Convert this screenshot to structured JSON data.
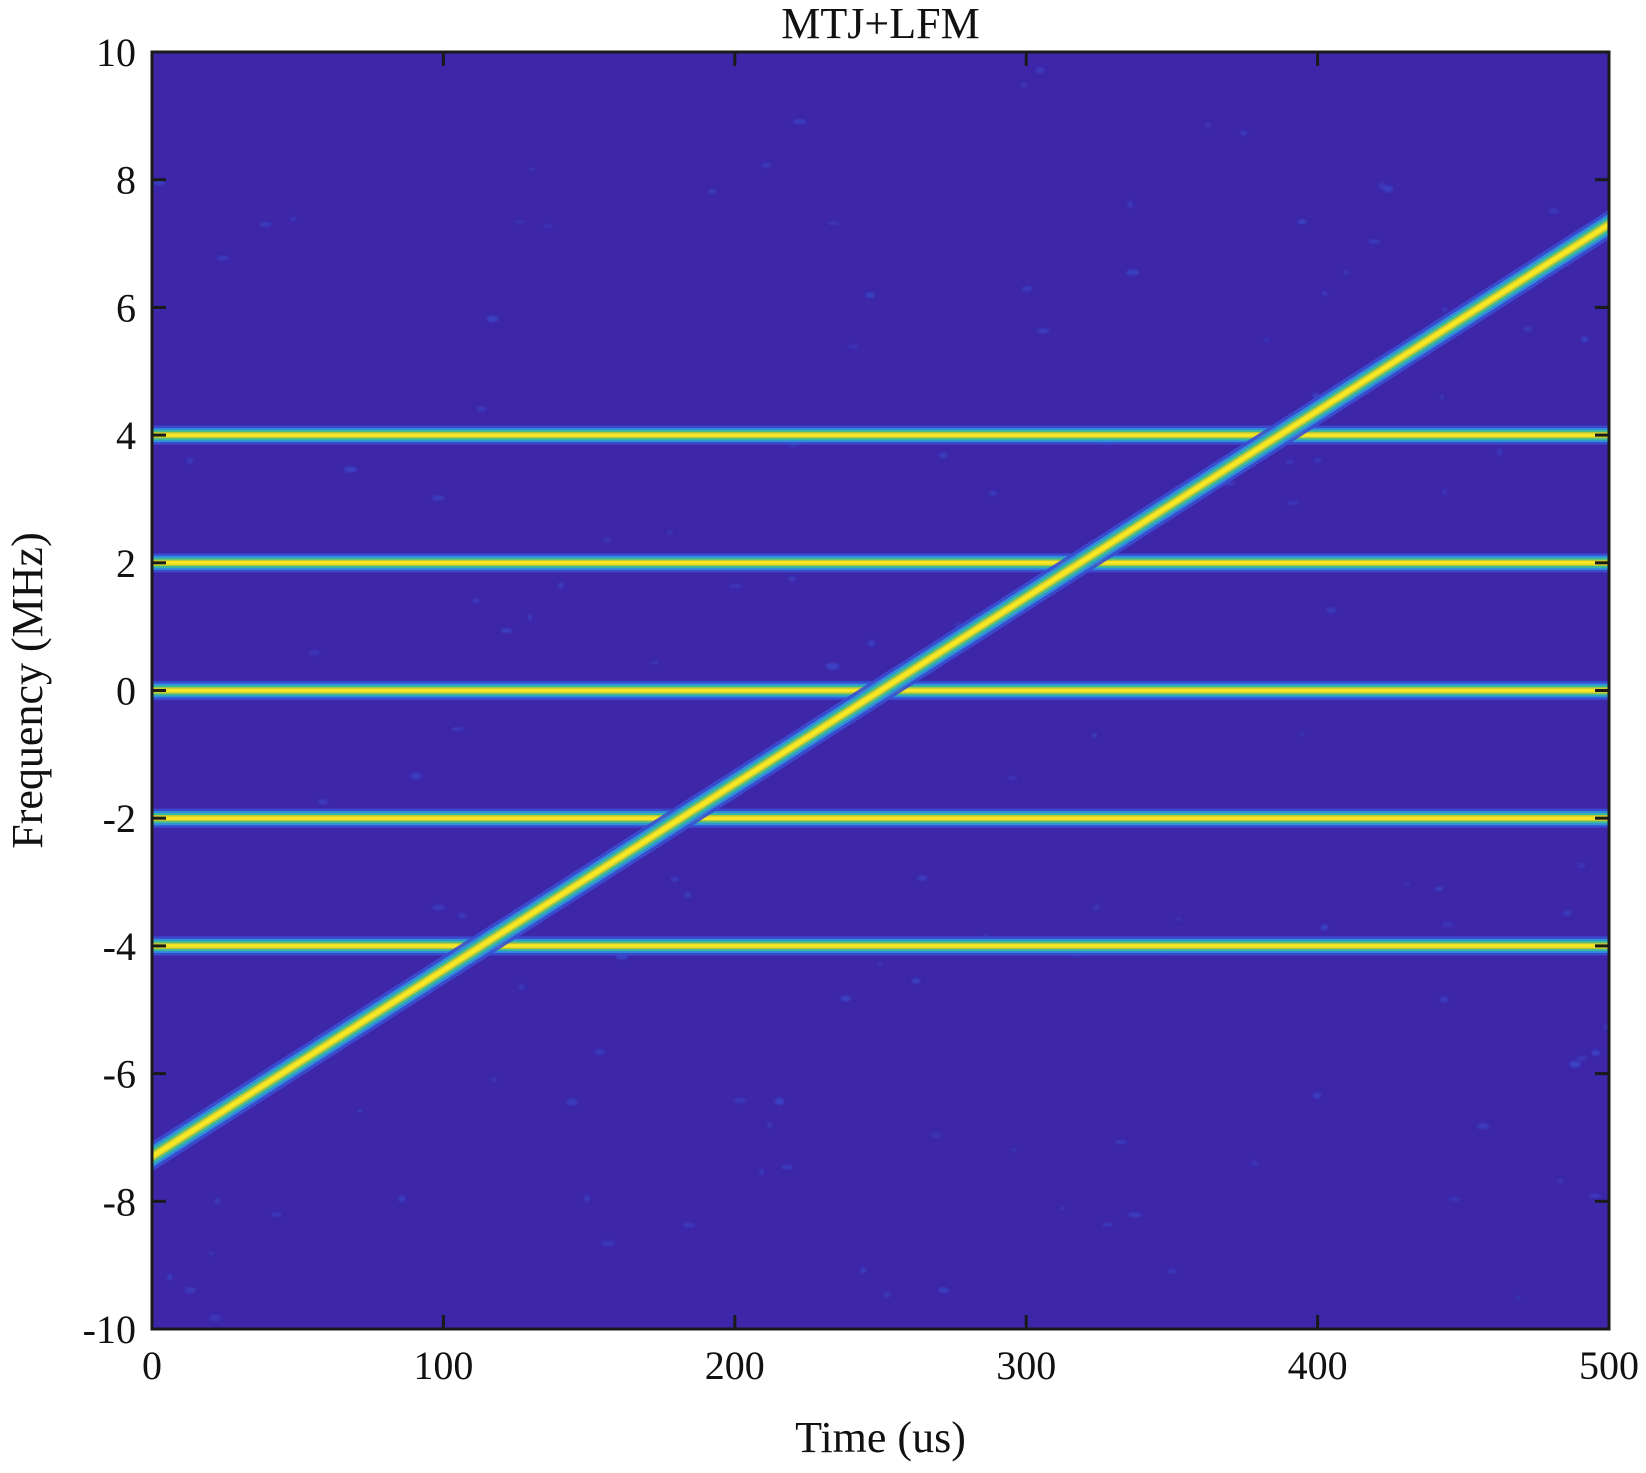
{
  "chart_data": {
    "type": "heatmap",
    "title": "MTJ+LFM",
    "xlabel": "Time (us)",
    "ylabel": "Frequency (MHz)",
    "xlim": [
      0,
      500
    ],
    "ylim": [
      -10,
      10
    ],
    "xticks": [
      0,
      100,
      200,
      300,
      400,
      500
    ],
    "yticks": [
      -10,
      -8,
      -6,
      -4,
      -2,
      0,
      2,
      4,
      6,
      8,
      10
    ],
    "grid": false,
    "colormap": "parula",
    "colors": {
      "background": "#3d26a8",
      "speckle": "#3a4fd0",
      "edge": "#2f8fdc",
      "mid": "#3cb89a",
      "bright": "#b9c83a",
      "peak": "#f6e626"
    },
    "tones": [
      {
        "frequency": -4,
        "t_start": 0,
        "t_end": 500
      },
      {
        "frequency": -2,
        "t_start": 0,
        "t_end": 500
      },
      {
        "frequency": 0,
        "t_start": 0,
        "t_end": 500
      },
      {
        "frequency": 2,
        "t_start": 0,
        "t_end": 500
      },
      {
        "frequency": 4,
        "t_start": 0,
        "t_end": 500
      }
    ],
    "chirp": {
      "t_start": 0,
      "f_start": -7.3,
      "t_end": 500,
      "f_end": 7.3
    }
  }
}
